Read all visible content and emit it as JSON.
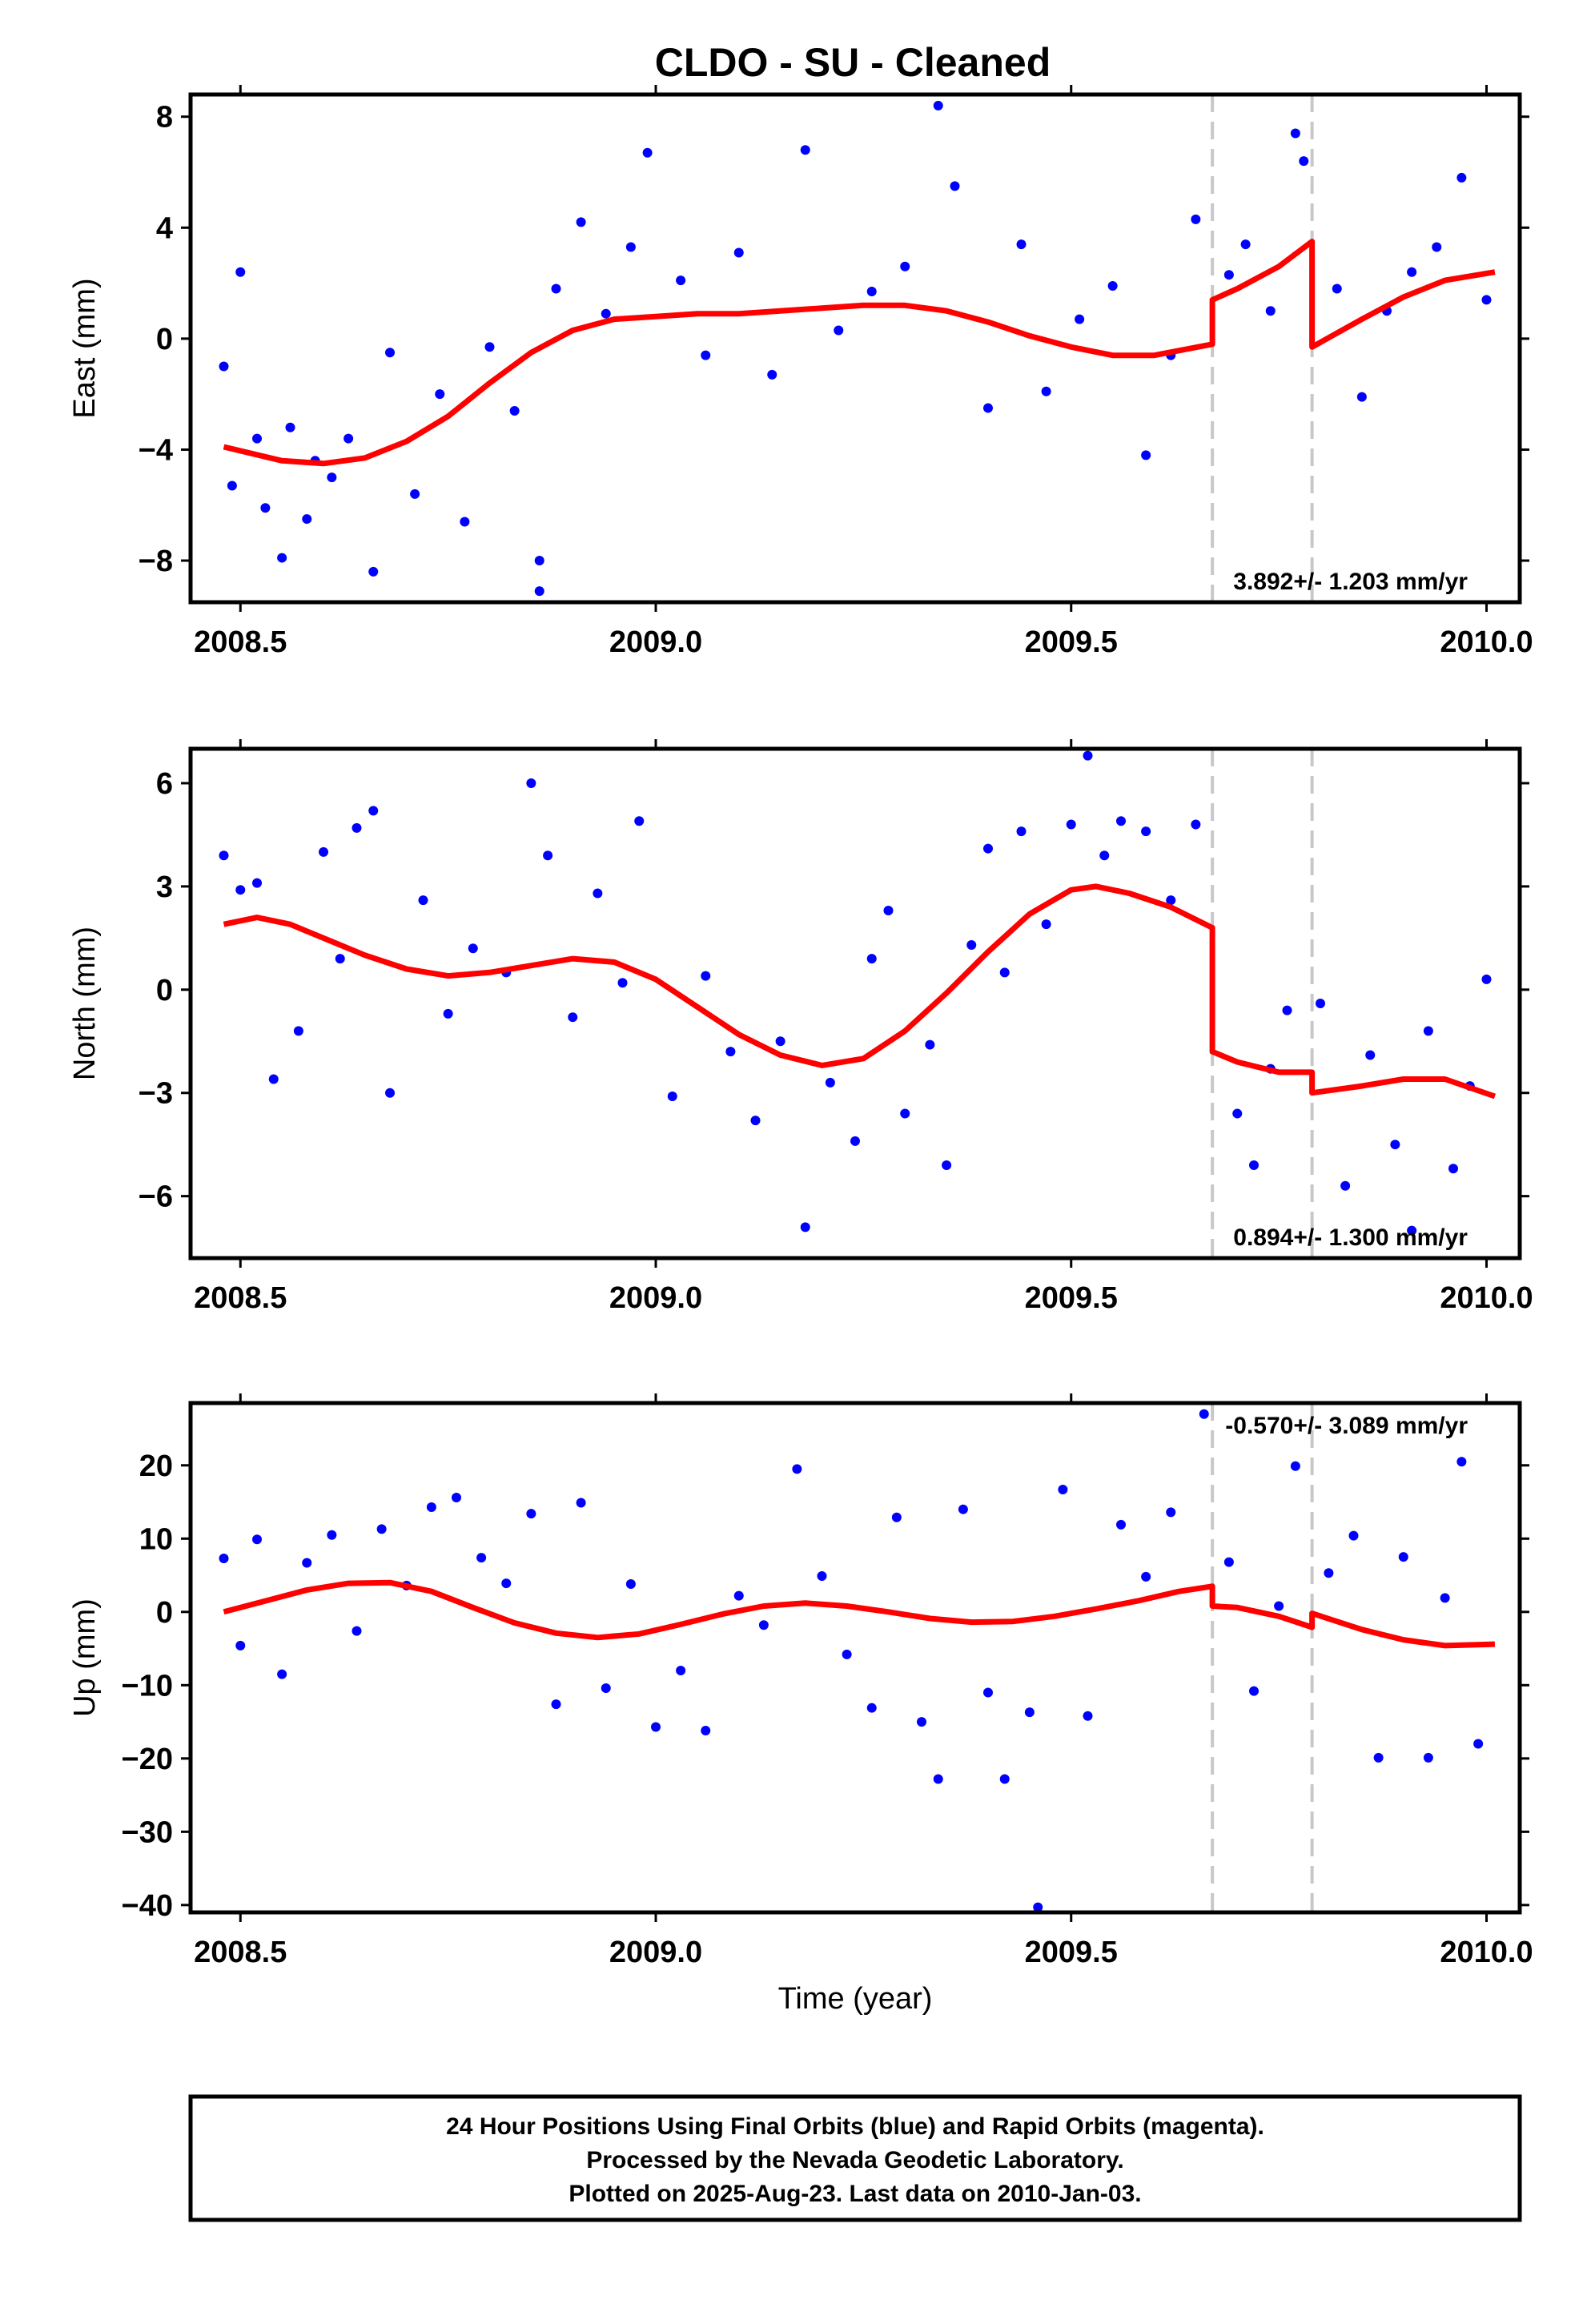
{
  "title": "CLDO  - SU - Cleaned",
  "colors": {
    "data_points": "#0000ff",
    "model_line": "#ff0000",
    "offset_lines": "#c8c8c8",
    "frame": "#000000"
  },
  "footer": {
    "line1": "24 Hour Positions Using Final Orbits (blue) and Rapid Orbits (magenta).",
    "line2": "Processed by the Nevada Geodetic Laboratory.",
    "line3": "Plotted on 2025-Aug-23. Last data on 2010-Jan-03."
  },
  "chart_data": [
    {
      "type": "scatter",
      "panel": "east",
      "ylabel": "East (mm)",
      "xlabel": "",
      "xlim": [
        2008.44,
        2010.04
      ],
      "ylim": [
        -9.5,
        8.8
      ],
      "xticks": [
        2008.5,
        2009.0,
        2009.5,
        2010.0
      ],
      "xtick_labels": [
        "2008.5",
        "2009.0",
        "2009.5",
        "2010.0"
      ],
      "yticks": [
        8,
        4,
        0,
        -4,
        -8
      ],
      "ytick_labels": [
        "8",
        "4",
        "0",
        "−4",
        "−8"
      ],
      "rate_label": "3.892+/- 1.203 mm/yr",
      "rate_label_position": "bottom-right",
      "offset_epochs": [
        2009.67,
        2009.79
      ],
      "grid": false,
      "model": {
        "name": "",
        "x": [
          2008.48,
          2008.55,
          2008.6,
          2008.65,
          2008.7,
          2008.75,
          2008.8,
          2008.85,
          2008.9,
          2008.95,
          2009.0,
          2009.05,
          2009.1,
          2009.15,
          2009.2,
          2009.25,
          2009.3,
          2009.35,
          2009.4,
          2009.45,
          2009.5,
          2009.55,
          2009.6,
          2009.67,
          2009.67,
          2009.7,
          2009.75,
          2009.79,
          2009.79,
          2009.85,
          2009.9,
          2009.95,
          2010.01
        ],
        "y": [
          -3.9,
          -4.4,
          -4.5,
          -4.3,
          -3.7,
          -2.8,
          -1.6,
          -0.5,
          0.3,
          0.7,
          0.8,
          0.9,
          0.9,
          1.0,
          1.1,
          1.2,
          1.2,
          1.0,
          0.6,
          0.1,
          -0.3,
          -0.6,
          -0.6,
          -0.2,
          1.4,
          1.8,
          2.6,
          3.5,
          -0.3,
          0.7,
          1.5,
          2.1,
          2.4
        ]
      },
      "points": {
        "name": "",
        "x": [
          2008.48,
          2008.49,
          2008.5,
          2008.52,
          2008.53,
          2008.55,
          2008.56,
          2008.58,
          2008.59,
          2008.61,
          2008.63,
          2008.66,
          2008.68,
          2008.71,
          2008.74,
          2008.77,
          2008.8,
          2008.83,
          2008.86,
          2008.86,
          2008.88,
          2008.91,
          2008.94,
          2008.97,
          2008.99,
          2009.03,
          2009.06,
          2009.1,
          2009.14,
          2009.18,
          2009.22,
          2009.26,
          2009.3,
          2009.34,
          2009.36,
          2009.4,
          2009.44,
          2009.47,
          2009.51,
          2009.55,
          2009.59,
          2009.62,
          2009.65,
          2009.69,
          2009.71,
          2009.74,
          2009.77,
          2009.78,
          2009.82,
          2009.85,
          2009.88,
          2009.91,
          2009.94,
          2009.97,
          2010.0
        ],
        "y": [
          -1.0,
          -5.3,
          2.4,
          -3.6,
          -6.1,
          -7.9,
          -3.2,
          -6.5,
          -4.4,
          -5.0,
          -3.6,
          -8.4,
          -0.5,
          -5.6,
          -2.0,
          -6.6,
          -0.3,
          -2.6,
          -8.0,
          -9.1,
          1.8,
          4.2,
          0.9,
          3.3,
          6.7,
          2.1,
          -0.6,
          3.1,
          -1.3,
          6.8,
          0.3,
          1.7,
          2.6,
          8.4,
          5.5,
          -2.5,
          3.4,
          -1.9,
          0.7,
          1.9,
          -4.2,
          -0.6,
          4.3,
          2.3,
          3.4,
          1.0,
          7.4,
          6.4,
          1.8,
          -2.1,
          1.0,
          2.4,
          3.3,
          5.8,
          1.4
        ]
      }
    },
    {
      "type": "scatter",
      "panel": "north",
      "ylabel": "North (mm)",
      "xlabel": "",
      "xlim": [
        2008.44,
        2010.04
      ],
      "ylim": [
        -7.8,
        7.0
      ],
      "xticks": [
        2008.5,
        2009.0,
        2009.5,
        2010.0
      ],
      "xtick_labels": [
        "2008.5",
        "2009.0",
        "2009.5",
        "2010.0"
      ],
      "yticks": [
        6,
        3,
        0,
        -3,
        -6
      ],
      "ytick_labels": [
        "6",
        "3",
        "0",
        "−3",
        "−6"
      ],
      "rate_label": "0.894+/- 1.300 mm/yr",
      "rate_label_position": "bottom-right",
      "offset_epochs": [
        2009.67,
        2009.79
      ],
      "grid": false,
      "model": {
        "name": "",
        "x": [
          2008.48,
          2008.52,
          2008.56,
          2008.6,
          2008.65,
          2008.7,
          2008.75,
          2008.8,
          2008.85,
          2008.9,
          2008.95,
          2009.0,
          2009.05,
          2009.1,
          2009.15,
          2009.2,
          2009.25,
          2009.3,
          2009.35,
          2009.4,
          2009.45,
          2009.5,
          2009.53,
          2009.57,
          2009.62,
          2009.67,
          2009.67,
          2009.7,
          2009.75,
          2009.79,
          2009.79,
          2009.85,
          2009.9,
          2009.95,
          2010.01
        ],
        "y": [
          1.9,
          2.1,
          1.9,
          1.5,
          1.0,
          0.6,
          0.4,
          0.5,
          0.7,
          0.9,
          0.8,
          0.3,
          -0.5,
          -1.3,
          -1.9,
          -2.2,
          -2.0,
          -1.2,
          -0.1,
          1.1,
          2.2,
          2.9,
          3.0,
          2.8,
          2.4,
          1.8,
          -1.8,
          -2.1,
          -2.4,
          -2.4,
          -3.0,
          -2.8,
          -2.6,
          -2.6,
          -3.1
        ]
      },
      "points": {
        "name": "",
        "x": [
          2008.48,
          2008.5,
          2008.52,
          2008.54,
          2008.57,
          2008.6,
          2008.62,
          2008.64,
          2008.66,
          2008.68,
          2008.72,
          2008.75,
          2008.78,
          2008.82,
          2008.85,
          2008.87,
          2008.9,
          2008.93,
          2008.96,
          2008.98,
          2009.02,
          2009.06,
          2009.09,
          2009.12,
          2009.15,
          2009.18,
          2009.21,
          2009.24,
          2009.26,
          2009.28,
          2009.3,
          2009.33,
          2009.35,
          2009.38,
          2009.4,
          2009.42,
          2009.44,
          2009.47,
          2009.5,
          2009.52,
          2009.54,
          2009.56,
          2009.59,
          2009.62,
          2009.65,
          2009.7,
          2009.72,
          2009.74,
          2009.76,
          2009.8,
          2009.83,
          2009.86,
          2009.89,
          2009.91,
          2009.93,
          2009.96,
          2009.98,
          2010.0
        ],
        "y": [
          3.9,
          2.9,
          3.1,
          -2.6,
          -1.2,
          4.0,
          0.9,
          4.7,
          5.2,
          -3.0,
          2.6,
          -0.7,
          1.2,
          0.5,
          6.0,
          3.9,
          -0.8,
          2.8,
          0.2,
          4.9,
          -3.1,
          0.4,
          -1.8,
          -3.8,
          -1.5,
          -6.9,
          -2.7,
          -4.4,
          0.9,
          2.3,
          -3.6,
          -1.6,
          -5.1,
          1.3,
          4.1,
          0.5,
          4.6,
          1.9,
          4.8,
          6.8,
          3.9,
          4.9,
          4.6,
          2.6,
          4.8,
          -3.6,
          -5.1,
          -2.3,
          -0.6,
          -0.4,
          -5.7,
          -1.9,
          -4.5,
          -7.0,
          -1.2,
          -5.2,
          -2.8,
          0.3
        ]
      }
    },
    {
      "type": "scatter",
      "panel": "up",
      "ylabel": "Up (mm)",
      "xlabel": "Time (year)",
      "xlim": [
        2008.44,
        2010.04
      ],
      "ylim": [
        -41,
        28.5
      ],
      "xticks": [
        2008.5,
        2009.0,
        2009.5,
        2010.0
      ],
      "xtick_labels": [
        "2008.5",
        "2009.0",
        "2009.5",
        "2010.0"
      ],
      "yticks": [
        20,
        10,
        0,
        -10,
        -20,
        -30,
        -40
      ],
      "ytick_labels": [
        "20",
        "10",
        "0",
        "−10",
        "−20",
        "−30",
        "−40"
      ],
      "rate_label": "-0.570+/- 3.089 mm/yr",
      "rate_label_position": "top-right",
      "offset_epochs": [
        2009.67,
        2009.79
      ],
      "grid": false,
      "model": {
        "name": "",
        "x": [
          2008.48,
          2008.53,
          2008.58,
          2008.63,
          2008.68,
          2008.73,
          2008.78,
          2008.83,
          2008.88,
          2008.93,
          2008.98,
          2009.03,
          2009.08,
          2009.13,
          2009.18,
          2009.23,
          2009.28,
          2009.33,
          2009.38,
          2009.43,
          2009.48,
          2009.53,
          2009.58,
          2009.63,
          2009.67,
          2009.67,
          2009.7,
          2009.75,
          2009.79,
          2009.79,
          2009.85,
          2009.9,
          2009.95,
          2010.01
        ],
        "y": [
          0.0,
          1.5,
          3.0,
          3.9,
          4.0,
          2.8,
          0.6,
          -1.5,
          -2.9,
          -3.5,
          -3.0,
          -1.7,
          -0.3,
          0.8,
          1.2,
          0.8,
          0.0,
          -0.9,
          -1.4,
          -1.3,
          -0.6,
          0.4,
          1.5,
          2.8,
          3.5,
          0.8,
          0.6,
          -0.6,
          -2.1,
          -0.2,
          -2.4,
          -3.8,
          -4.6,
          -4.4
        ]
      },
      "points": {
        "name": "",
        "x": [
          2008.48,
          2008.5,
          2008.52,
          2008.55,
          2008.58,
          2008.61,
          2008.64,
          2008.67,
          2008.7,
          2008.73,
          2008.76,
          2008.79,
          2008.82,
          2008.85,
          2008.88,
          2008.91,
          2008.94,
          2008.97,
          2009.0,
          2009.03,
          2009.06,
          2009.1,
          2009.13,
          2009.17,
          2009.2,
          2009.23,
          2009.26,
          2009.29,
          2009.32,
          2009.34,
          2009.37,
          2009.4,
          2009.42,
          2009.45,
          2009.46,
          2009.49,
          2009.52,
          2009.56,
          2009.59,
          2009.62,
          2009.66,
          2009.69,
          2009.72,
          2009.75,
          2009.77,
          2009.81,
          2009.84,
          2009.87,
          2009.9,
          2009.93,
          2009.95,
          2009.97,
          2009.99
        ],
        "y": [
          7.3,
          -4.6,
          9.9,
          -8.5,
          6.7,
          10.5,
          -2.6,
          11.3,
          3.6,
          14.3,
          15.6,
          7.4,
          3.9,
          13.4,
          -12.6,
          14.9,
          -10.4,
          3.8,
          -15.7,
          -8.0,
          -16.2,
          2.2,
          -1.8,
          19.5,
          4.9,
          -5.8,
          -13.1,
          12.9,
          -15.0,
          -22.8,
          14.0,
          -11.0,
          -22.8,
          -13.7,
          -40.3,
          16.7,
          -14.2,
          11.9,
          4.8,
          13.6,
          27.0,
          6.8,
          -10.8,
          0.8,
          19.9,
          5.3,
          10.4,
          -19.9,
          7.5,
          -19.9,
          1.9,
          20.5,
          -18.0
        ]
      }
    }
  ]
}
